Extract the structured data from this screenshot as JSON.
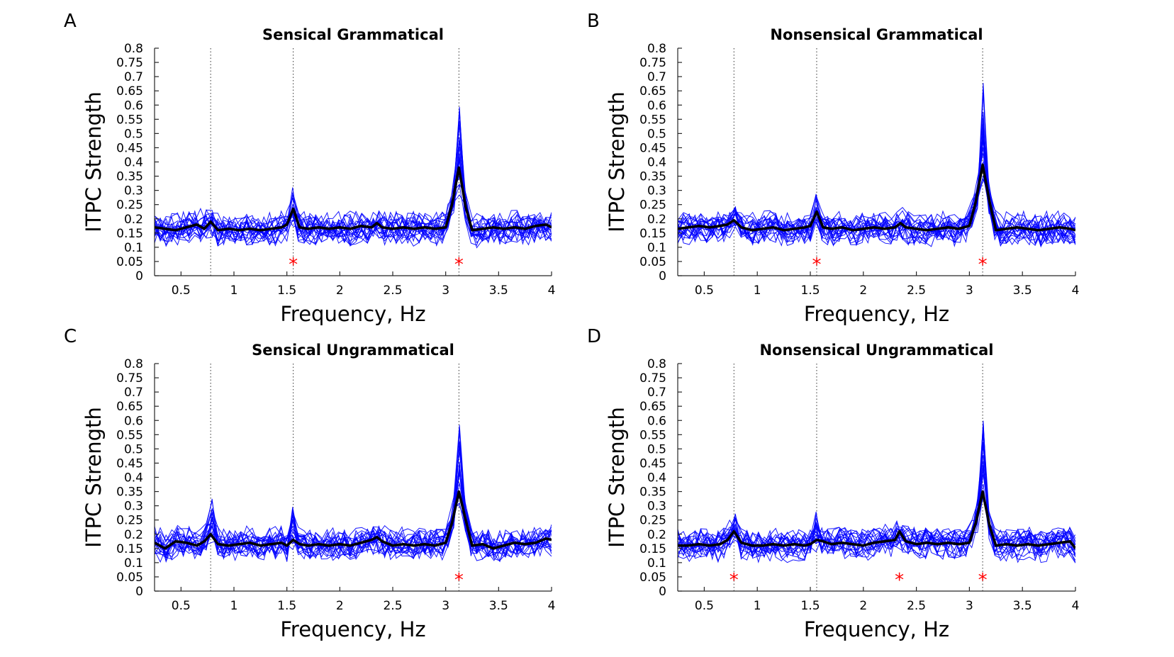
{
  "figure": {
    "background": "#ffffff",
    "subject_color": "#0000ff",
    "mean_color": "#000000",
    "marker_color": "#ff0000"
  },
  "chart_data": [
    {
      "type": "line",
      "panel_letter": "A",
      "title": "Sensical Grammatical",
      "xlabel": "Frequency, Hz",
      "ylabel": "ITPC Strength",
      "xlim": [
        0.25,
        4
      ],
      "ylim": [
        0,
        0.8
      ],
      "xticks": [
        0.5,
        1,
        1.5,
        2,
        2.5,
        3,
        3.5,
        4
      ],
      "xtick_labels": [
        "0.5",
        "1",
        "1.5",
        "2",
        "2.5",
        "3",
        "3.5",
        "4"
      ],
      "yticks": [
        0,
        0.05,
        0.1,
        0.15,
        0.2,
        0.25,
        0.3,
        0.35,
        0.4,
        0.45,
        0.5,
        0.55,
        0.6,
        0.65,
        0.7,
        0.75,
        0.8
      ],
      "ytick_labels": [
        "0",
        "0.05",
        "0.1",
        "0.15",
        "0.2",
        "0.25",
        "0.3",
        "0.35",
        "0.4",
        "0.45",
        "0.5",
        "0.55",
        "0.6",
        "0.65",
        "0.7",
        "0.75",
        "0.8"
      ],
      "reference_lines_x": [
        0.78,
        1.56,
        3.125
      ],
      "significance_markers": [
        {
          "x": 1.56,
          "y": 0.05
        },
        {
          "x": 3.125,
          "y": 0.05
        }
      ],
      "grid": false,
      "subject_count": 20,
      "subject_peaks": {
        "0.78": [
          0.26,
          0.16
        ],
        "1.56": [
          0.31,
          0.2
        ],
        "3.125": [
          0.62,
          0.3
        ]
      },
      "mean_series": {
        "x": [
          0.25,
          0.35,
          0.45,
          0.55,
          0.65,
          0.72,
          0.78,
          0.85,
          0.95,
          1.05,
          1.15,
          1.25,
          1.35,
          1.45,
          1.5,
          1.56,
          1.62,
          1.7,
          1.8,
          1.9,
          2.0,
          2.1,
          2.2,
          2.3,
          2.35,
          2.4,
          2.5,
          2.6,
          2.7,
          2.8,
          2.9,
          3.0,
          3.06,
          3.125,
          3.19,
          3.25,
          3.35,
          3.45,
          3.55,
          3.65,
          3.75,
          3.85,
          3.95,
          4.0
        ],
        "y": [
          0.17,
          0.165,
          0.16,
          0.17,
          0.18,
          0.165,
          0.19,
          0.16,
          0.165,
          0.16,
          0.165,
          0.16,
          0.165,
          0.17,
          0.18,
          0.235,
          0.17,
          0.165,
          0.17,
          0.165,
          0.17,
          0.165,
          0.175,
          0.17,
          0.185,
          0.17,
          0.165,
          0.17,
          0.165,
          0.17,
          0.165,
          0.17,
          0.25,
          0.38,
          0.24,
          0.16,
          0.165,
          0.17,
          0.165,
          0.17,
          0.165,
          0.175,
          0.18,
          0.17
        ]
      }
    },
    {
      "type": "line",
      "panel_letter": "B",
      "title": "Nonsensical Grammatical",
      "xlabel": "Frequency, Hz",
      "ylabel": "ITPC Strength",
      "xlim": [
        0.25,
        4
      ],
      "ylim": [
        0,
        0.8
      ],
      "xticks": [
        0.5,
        1,
        1.5,
        2,
        2.5,
        3,
        3.5,
        4
      ],
      "xtick_labels": [
        "0.5",
        "1",
        "1.5",
        "2",
        "2.5",
        "3",
        "3.5",
        "4"
      ],
      "yticks": [
        0,
        0.05,
        0.1,
        0.15,
        0.2,
        0.25,
        0.3,
        0.35,
        0.4,
        0.45,
        0.5,
        0.55,
        0.6,
        0.65,
        0.7,
        0.75,
        0.8
      ],
      "ytick_labels": [
        "0",
        "0.05",
        "0.1",
        "0.15",
        "0.2",
        "0.25",
        "0.3",
        "0.35",
        "0.4",
        "0.45",
        "0.5",
        "0.55",
        "0.6",
        "0.65",
        "0.7",
        "0.75",
        "0.8"
      ],
      "reference_lines_x": [
        0.78,
        1.56,
        3.125
      ],
      "significance_markers": [
        {
          "x": 1.56,
          "y": 0.05
        },
        {
          "x": 3.125,
          "y": 0.05
        }
      ],
      "grid": false,
      "subject_count": 20,
      "subject_peaks": {
        "0.78": [
          0.28,
          0.17
        ],
        "1.56": [
          0.29,
          0.19
        ],
        "3.125": [
          0.72,
          0.3
        ]
      },
      "mean_series": {
        "x": [
          0.25,
          0.35,
          0.45,
          0.55,
          0.65,
          0.72,
          0.78,
          0.85,
          0.95,
          1.05,
          1.15,
          1.25,
          1.35,
          1.45,
          1.5,
          1.56,
          1.62,
          1.7,
          1.8,
          1.9,
          2.0,
          2.1,
          2.2,
          2.3,
          2.35,
          2.4,
          2.5,
          2.6,
          2.7,
          2.8,
          2.9,
          3.0,
          3.06,
          3.125,
          3.19,
          3.25,
          3.35,
          3.45,
          3.55,
          3.65,
          3.75,
          3.85,
          3.95,
          4.0
        ],
        "y": [
          0.165,
          0.17,
          0.175,
          0.17,
          0.175,
          0.18,
          0.195,
          0.17,
          0.16,
          0.165,
          0.17,
          0.16,
          0.165,
          0.17,
          0.175,
          0.225,
          0.17,
          0.165,
          0.17,
          0.16,
          0.165,
          0.17,
          0.165,
          0.17,
          0.185,
          0.17,
          0.165,
          0.16,
          0.165,
          0.17,
          0.165,
          0.175,
          0.26,
          0.39,
          0.26,
          0.16,
          0.165,
          0.17,
          0.165,
          0.16,
          0.165,
          0.17,
          0.165,
          0.16
        ]
      }
    },
    {
      "type": "line",
      "panel_letter": "C",
      "title": "Sensical Ungrammatical",
      "xlabel": "Frequency, Hz",
      "ylabel": "ITPC Strength",
      "xlim": [
        0.25,
        4
      ],
      "ylim": [
        0,
        0.8
      ],
      "xticks": [
        0.5,
        1,
        1.5,
        2,
        2.5,
        3,
        3.5,
        4
      ],
      "xtick_labels": [
        "0.5",
        "1",
        "1.5",
        "2",
        "2.5",
        "3",
        "3.5",
        "4"
      ],
      "yticks": [
        0,
        0.05,
        0.1,
        0.15,
        0.2,
        0.25,
        0.3,
        0.35,
        0.4,
        0.45,
        0.5,
        0.55,
        0.6,
        0.65,
        0.7,
        0.75,
        0.8
      ],
      "ytick_labels": [
        "0",
        "0.05",
        "0.1",
        "0.15",
        "0.2",
        "0.25",
        "0.3",
        "0.35",
        "0.4",
        "0.45",
        "0.5",
        "0.55",
        "0.6",
        "0.65",
        "0.7",
        "0.75",
        "0.8"
      ],
      "reference_lines_x": [
        0.78,
        1.56,
        3.125
      ],
      "significance_markers": [
        {
          "x": 3.125,
          "y": 0.05
        }
      ],
      "grid": false,
      "subject_count": 20,
      "subject_peaks": {
        "0.78": [
          0.38,
          0.18
        ],
        "1.56": [
          0.32,
          0.17
        ],
        "3.125": [
          0.57,
          0.28
        ]
      },
      "mean_series": {
        "x": [
          0.25,
          0.35,
          0.45,
          0.55,
          0.65,
          0.72,
          0.78,
          0.85,
          0.95,
          1.05,
          1.15,
          1.25,
          1.35,
          1.45,
          1.5,
          1.56,
          1.62,
          1.7,
          1.8,
          1.9,
          2.0,
          2.1,
          2.2,
          2.3,
          2.35,
          2.4,
          2.5,
          2.6,
          2.7,
          2.8,
          2.9,
          3.0,
          3.06,
          3.125,
          3.19,
          3.25,
          3.35,
          3.45,
          3.55,
          3.65,
          3.75,
          3.85,
          3.95,
          4.0
        ],
        "y": [
          0.17,
          0.15,
          0.175,
          0.17,
          0.16,
          0.175,
          0.2,
          0.165,
          0.16,
          0.165,
          0.17,
          0.16,
          0.165,
          0.17,
          0.16,
          0.18,
          0.165,
          0.16,
          0.165,
          0.16,
          0.165,
          0.16,
          0.17,
          0.18,
          0.19,
          0.175,
          0.16,
          0.165,
          0.16,
          0.165,
          0.16,
          0.17,
          0.24,
          0.35,
          0.25,
          0.16,
          0.165,
          0.15,
          0.16,
          0.17,
          0.165,
          0.17,
          0.185,
          0.18
        ]
      }
    },
    {
      "type": "line",
      "panel_letter": "D",
      "title": "Nonsensical Ungrammatical",
      "xlabel": "Frequency, Hz",
      "ylabel": "ITPC Strength",
      "xlim": [
        0.25,
        4
      ],
      "ylim": [
        0,
        0.8
      ],
      "xticks": [
        0.5,
        1,
        1.5,
        2,
        2.5,
        3,
        3.5,
        4
      ],
      "xtick_labels": [
        "0.5",
        "1",
        "1.5",
        "2",
        "2.5",
        "3",
        "3.5",
        "4"
      ],
      "yticks": [
        0,
        0.05,
        0.1,
        0.15,
        0.2,
        0.25,
        0.3,
        0.35,
        0.4,
        0.45,
        0.5,
        0.55,
        0.6,
        0.65,
        0.7,
        0.75,
        0.8
      ],
      "ytick_labels": [
        "0",
        "0.05",
        "0.1",
        "0.15",
        "0.2",
        "0.25",
        "0.3",
        "0.35",
        "0.4",
        "0.45",
        "0.5",
        "0.55",
        "0.6",
        "0.65",
        "0.7",
        "0.75",
        "0.8"
      ],
      "reference_lines_x": [
        0.78,
        1.56,
        3.125
      ],
      "significance_markers": [
        {
          "x": 0.78,
          "y": 0.05
        },
        {
          "x": 2.34,
          "y": 0.05
        },
        {
          "x": 3.125,
          "y": 0.05
        }
      ],
      "grid": false,
      "subject_count": 20,
      "subject_peaks": {
        "0.78": [
          0.33,
          0.19
        ],
        "1.56": [
          0.3,
          0.17
        ],
        "3.125": [
          0.68,
          0.28
        ]
      },
      "mean_series": {
        "x": [
          0.25,
          0.35,
          0.45,
          0.55,
          0.65,
          0.72,
          0.78,
          0.85,
          0.95,
          1.05,
          1.15,
          1.25,
          1.35,
          1.45,
          1.5,
          1.56,
          1.62,
          1.7,
          1.8,
          1.9,
          2.0,
          2.1,
          2.2,
          2.3,
          2.34,
          2.4,
          2.5,
          2.6,
          2.7,
          2.8,
          2.9,
          3.0,
          3.06,
          3.125,
          3.19,
          3.25,
          3.35,
          3.45,
          3.55,
          3.65,
          3.75,
          3.85,
          3.95,
          4.0
        ],
        "y": [
          0.16,
          0.16,
          0.165,
          0.16,
          0.165,
          0.18,
          0.21,
          0.17,
          0.16,
          0.16,
          0.165,
          0.16,
          0.165,
          0.16,
          0.165,
          0.18,
          0.175,
          0.165,
          0.17,
          0.165,
          0.16,
          0.17,
          0.175,
          0.18,
          0.21,
          0.175,
          0.165,
          0.17,
          0.165,
          0.17,
          0.165,
          0.17,
          0.24,
          0.35,
          0.23,
          0.16,
          0.165,
          0.16,
          0.165,
          0.16,
          0.165,
          0.17,
          0.175,
          0.15
        ]
      }
    }
  ]
}
